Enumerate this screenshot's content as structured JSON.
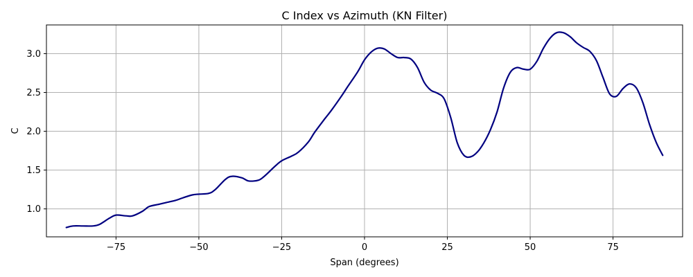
{
  "chart_data": {
    "type": "line",
    "title": "C Index vs Azimuth (KN Filter)",
    "xlabel": "Span (degrees)",
    "ylabel": "C",
    "xlim": [
      -96,
      96
    ],
    "ylim": [
      0.64,
      3.37
    ],
    "grid": true,
    "line_color": "#000080",
    "x_ticks": [
      -75,
      -50,
      -25,
      0,
      25,
      50,
      75
    ],
    "x_tick_labels": [
      "−75",
      "−50",
      "−25",
      "0",
      "25",
      "50",
      "75"
    ],
    "y_ticks": [
      1.0,
      1.5,
      2.0,
      2.5,
      3.0
    ],
    "y_tick_labels": [
      "1.0",
      "1.5",
      "2.0",
      "2.5",
      "3.0"
    ],
    "series": [
      {
        "x": [
          -90,
          -88,
          -85,
          -82,
          -80,
          -77,
          -75,
          -72,
          -70,
          -67,
          -65,
          -62,
          -60,
          -57,
          -55,
          -52,
          -50,
          -47,
          -45,
          -42,
          -40,
          -37,
          -35,
          -32,
          -30,
          -27,
          -25,
          -22,
          -20,
          -17,
          -15,
          -12,
          -10,
          -7,
          -5,
          -2,
          0,
          2,
          4,
          6,
          8,
          10,
          12,
          14,
          16,
          18,
          20,
          22,
          24,
          26,
          28,
          30,
          32,
          34,
          36,
          38,
          40,
          42,
          44,
          46,
          48,
          50,
          52,
          54,
          56,
          58,
          60,
          62,
          64,
          66,
          68,
          70,
          72,
          74,
          76,
          78,
          80,
          82,
          84,
          86,
          88,
          90
        ],
        "y": [
          0.76,
          0.78,
          0.78,
          0.78,
          0.8,
          0.88,
          0.92,
          0.91,
          0.91,
          0.97,
          1.03,
          1.06,
          1.08,
          1.11,
          1.14,
          1.18,
          1.19,
          1.2,
          1.25,
          1.38,
          1.42,
          1.4,
          1.36,
          1.37,
          1.43,
          1.55,
          1.62,
          1.68,
          1.73,
          1.86,
          1.99,
          2.16,
          2.27,
          2.45,
          2.58,
          2.77,
          2.92,
          3.02,
          3.07,
          3.06,
          3.0,
          2.95,
          2.95,
          2.93,
          2.82,
          2.63,
          2.53,
          2.49,
          2.42,
          2.18,
          1.85,
          1.69,
          1.67,
          1.73,
          1.85,
          2.02,
          2.25,
          2.56,
          2.76,
          2.82,
          2.8,
          2.8,
          2.9,
          3.07,
          3.2,
          3.27,
          3.27,
          3.22,
          3.14,
          3.08,
          3.03,
          2.91,
          2.69,
          2.48,
          2.45,
          2.55,
          2.61,
          2.56,
          2.37,
          2.09,
          1.86,
          1.69
        ]
      }
    ]
  }
}
